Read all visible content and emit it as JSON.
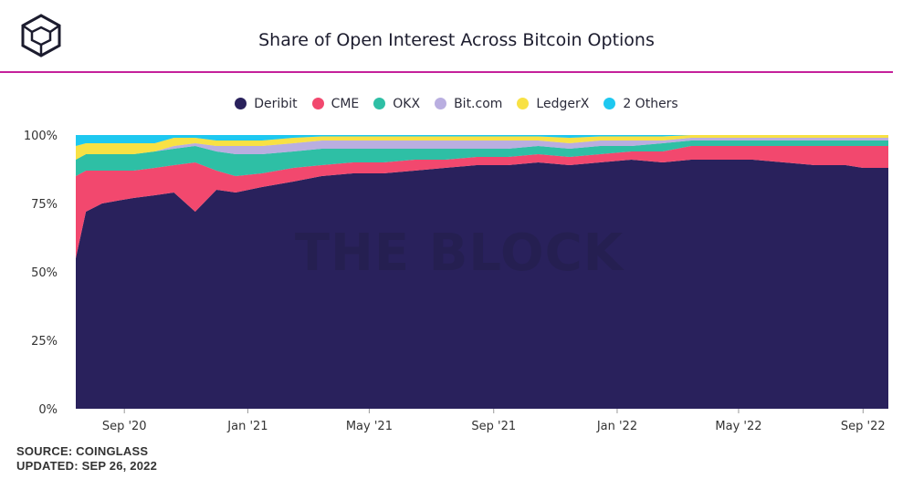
{
  "header": {
    "title": "Share of Open Interest Across Bitcoin Options",
    "accent_color": "#c5219b",
    "logo_icon": "cube-logo-icon"
  },
  "watermark": "THE BLOCK",
  "footer": {
    "source": "SOURCE: COINGLASS",
    "updated": "UPDATED: SEP 26, 2022"
  },
  "chart_data": {
    "type": "area",
    "stacked": true,
    "normalized": true,
    "title": "Share of Open Interest Across Bitcoin Options",
    "xlabel": "",
    "ylabel": "",
    "ylim": [
      0,
      100
    ],
    "y_ticks": [
      "0%",
      "25%",
      "50%",
      "75%",
      "100%"
    ],
    "x_ticks": [
      "Sep '20",
      "Jan '21",
      "May '21",
      "Sep '21",
      "Jan '22",
      "May '22",
      "Sep '22"
    ],
    "x": [
      "2020-07-15",
      "2020-07-25",
      "2020-08-10",
      "2020-08-25",
      "2020-09-10",
      "2020-10-01",
      "2020-10-20",
      "2020-11-10",
      "2020-12-01",
      "2020-12-20",
      "2021-01-15",
      "2021-02-15",
      "2021-03-15",
      "2021-04-15",
      "2021-05-15",
      "2021-06-15",
      "2021-07-15",
      "2021-08-15",
      "2021-09-15",
      "2021-10-15",
      "2021-11-15",
      "2021-12-15",
      "2022-01-15",
      "2022-02-15",
      "2022-03-15",
      "2022-04-15",
      "2022-05-15",
      "2022-06-15",
      "2022-07-15",
      "2022-08-15",
      "2022-09-01",
      "2022-09-26"
    ],
    "series": [
      {
        "name": "Deribit",
        "color": "#29215c",
        "values": [
          55,
          72,
          75,
          76,
          77,
          78,
          79,
          72,
          80,
          79,
          81,
          83,
          85,
          86,
          86,
          87,
          88,
          89,
          89,
          90,
          89,
          90,
          91,
          90,
          91,
          91,
          91,
          90,
          89,
          89,
          88,
          88
        ]
      },
      {
        "name": "CME",
        "color": "#f2486e",
        "values": [
          30,
          15,
          12,
          11,
          10,
          10,
          10,
          18,
          7,
          6,
          5,
          5,
          4,
          4,
          4,
          4,
          3,
          3,
          3,
          3,
          3,
          3,
          3,
          4,
          5,
          5,
          5,
          6,
          7,
          7,
          8,
          8
        ]
      },
      {
        "name": "OKX",
        "color": "#2ebfa5",
        "values": [
          6,
          6,
          6,
          6,
          6,
          6,
          6,
          6,
          7,
          8,
          7,
          6,
          6,
          5,
          5,
          4,
          4,
          3,
          3,
          3,
          3,
          3,
          2,
          3,
          2,
          2,
          2,
          2,
          2,
          2,
          2,
          2
        ]
      },
      {
        "name": "Bit.com",
        "color": "#b9aee0",
        "values": [
          0,
          0,
          0,
          0,
          0,
          0,
          1,
          1,
          2,
          3,
          3,
          3,
          3,
          3,
          3,
          3,
          3,
          3,
          3,
          2,
          2,
          2,
          2,
          1,
          1,
          1,
          1,
          1,
          1,
          1,
          1,
          1
        ]
      },
      {
        "name": "LedgerX",
        "color": "#f8e144",
        "values": [
          5,
          4,
          4,
          4,
          4,
          3,
          3,
          2,
          2,
          2,
          2,
          2,
          1.5,
          1.5,
          1.5,
          1.5,
          1.5,
          1.5,
          1.5,
          1.5,
          2,
          1.5,
          1.5,
          1.5,
          1,
          1,
          1,
          1,
          1,
          1,
          1,
          1
        ]
      },
      {
        "name": "2 Others",
        "color": "#1ec8f0",
        "values": [
          4,
          3,
          3,
          3,
          3,
          3,
          1,
          1,
          2,
          2,
          2,
          1,
          0.5,
          0.5,
          0.5,
          0.5,
          0.5,
          0.5,
          0.5,
          0.5,
          1,
          0.5,
          0.5,
          0.5,
          0,
          0,
          0,
          0,
          0,
          0,
          0,
          0
        ]
      }
    ],
    "legend_position": "top-center",
    "grid": false
  }
}
